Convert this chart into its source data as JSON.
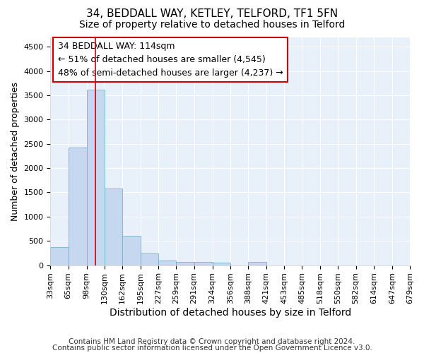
{
  "title": "34, BEDDALL WAY, KETLEY, TELFORD, TF1 5FN",
  "subtitle": "Size of property relative to detached houses in Telford",
  "xlabel": "Distribution of detached houses by size in Telford",
  "ylabel": "Number of detached properties",
  "bar_color": "#c5d8f0",
  "bar_edge_color": "#7aafd4",
  "background_color": "#e8f0fa",
  "grid_color": "#ffffff",
  "fig_background": "#ffffff",
  "red_line_x": 114,
  "annotation_text": "34 BEDDALL WAY: 114sqm\n← 51% of detached houses are smaller (4,545)\n48% of semi-detached houses are larger (4,237) →",
  "annotation_box_color": "#ffffff",
  "annotation_border_color": "#cc0000",
  "footer_line1": "Contains HM Land Registry data © Crown copyright and database right 2024.",
  "footer_line2": "Contains public sector information licensed under the Open Government Licence v3.0.",
  "bin_edges": [
    33,
    65,
    98,
    130,
    162,
    195,
    227,
    259,
    291,
    324,
    356,
    388,
    421,
    453,
    485,
    518,
    550,
    582,
    614,
    647,
    679
  ],
  "bin_heights": [
    375,
    2420,
    3620,
    1580,
    600,
    240,
    100,
    65,
    60,
    50,
    0,
    60,
    0,
    0,
    0,
    0,
    0,
    0,
    0,
    0
  ],
  "ylim": [
    0,
    4700
  ],
  "title_fontsize": 11,
  "subtitle_fontsize": 10,
  "xlabel_fontsize": 10,
  "ylabel_fontsize": 9,
  "tick_fontsize": 8,
  "annotation_fontsize": 9,
  "footer_fontsize": 7.5
}
